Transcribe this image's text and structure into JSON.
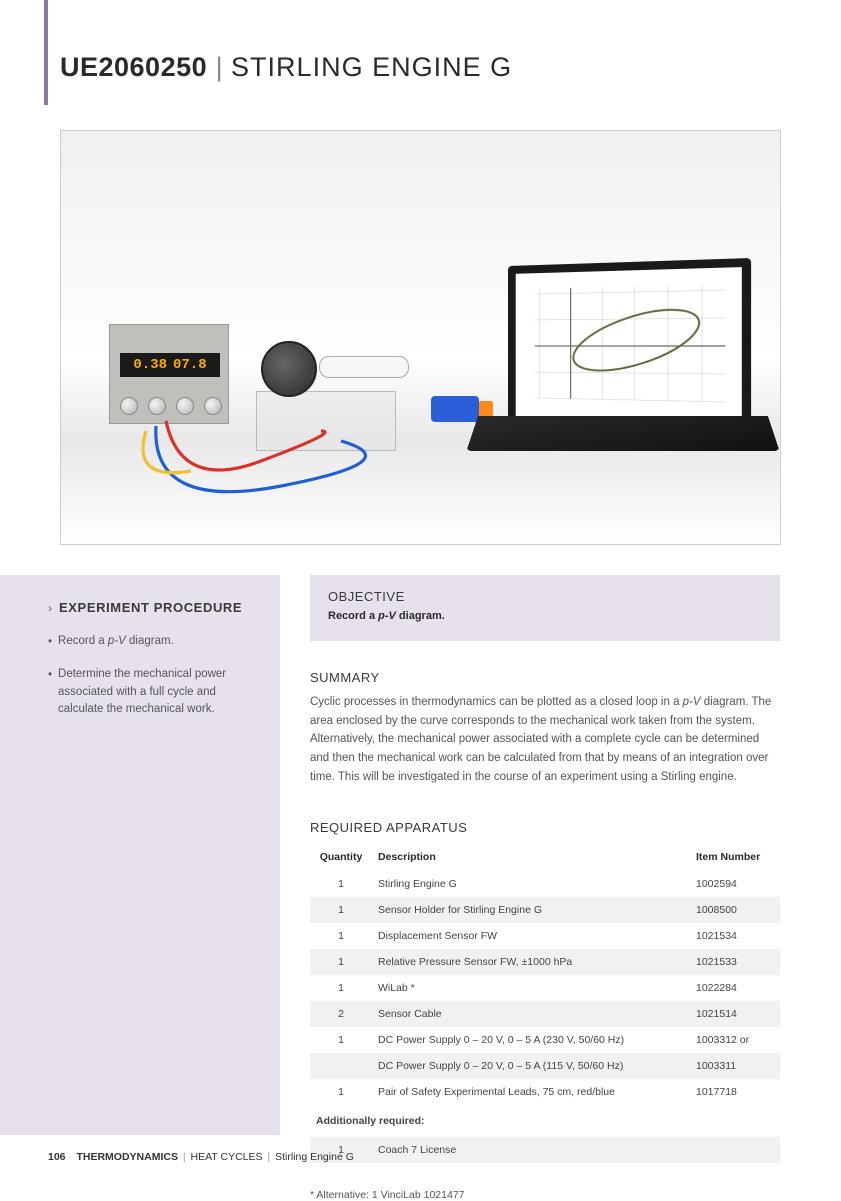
{
  "title": {
    "code": "UE2060250",
    "separator": "|",
    "name": "STIRLING ENGINE G"
  },
  "hero": {
    "psu_display_left": "0.38",
    "psu_display_right": "07.8",
    "chart_color": "#5a6a3a",
    "grid_color": "#cccccc",
    "cable_red": "#d8322a",
    "cable_blue": "#1f5fd6",
    "cable_yellow": "#f0c030"
  },
  "procedure": {
    "title": "EXPERIMENT PROCEDURE",
    "items": [
      "Record a p-V diagram.",
      "Determine the mechanical power associated with a full cycle and calculate the mechanical work."
    ]
  },
  "objective": {
    "title": "OBJECTIVE",
    "text": "Record a p-V diagram."
  },
  "summary": {
    "title": "SUMMARY",
    "text": "Cyclic processes in thermodynamics can be plotted as a closed loop in a p-V diagram. The area enclosed by the curve corresponds to the mechanical work taken from the system. Alternatively, the mechanical power associated with a complete cycle can be determined and then the mechanical work can be calculated from that by means of an integration over time. This will be investigated in the course of an experiment using a Stirling engine."
  },
  "apparatus": {
    "title": "REQUIRED APPARATUS",
    "columns": {
      "qty": "Quantity",
      "desc": "Description",
      "num": "Item Number"
    },
    "rows": [
      {
        "qty": "1",
        "desc": "Stirling Engine G",
        "num": "1002594"
      },
      {
        "qty": "1",
        "desc": "Sensor Holder for Stirling Engine G",
        "num": "1008500"
      },
      {
        "qty": "1",
        "desc": "Displacement Sensor FW",
        "num": "1021534"
      },
      {
        "qty": "1",
        "desc": "Relative Pressure Sensor FW, ±1000 hPa",
        "num": "1021533"
      },
      {
        "qty": "1",
        "desc": "WiLab *",
        "num": "1022284"
      },
      {
        "qty": "2",
        "desc": "Sensor Cable",
        "num": "1021514"
      },
      {
        "qty": "1",
        "desc": "DC Power Supply 0 – 20 V, 0 – 5 A (230 V, 50/60 Hz)",
        "num": "1003312 or"
      },
      {
        "qty": "",
        "desc": "DC Power Supply 0 – 20 V, 0 – 5 A (115 V, 50/60 Hz)",
        "num": "1003311"
      },
      {
        "qty": "1",
        "desc": "Pair of Safety Experimental Leads, 75 cm, red/blue",
        "num": "1017718"
      }
    ],
    "additional_label": "Additionally required:",
    "additional_rows": [
      {
        "qty": "1",
        "desc": "Coach 7 License",
        "num": ""
      }
    ],
    "alt_note": "* Alternative: 1 VinciLab 1021477"
  },
  "footer": {
    "page": "106",
    "sec1": "THERMODYNAMICS",
    "sec2": "HEAT CYCLES",
    "sec3": "Stirling Engine G"
  },
  "colors": {
    "accent": "#8b7a9e",
    "panel_bg": "#e7e1ed",
    "body_text": "#555555",
    "border": "#cccccc"
  }
}
